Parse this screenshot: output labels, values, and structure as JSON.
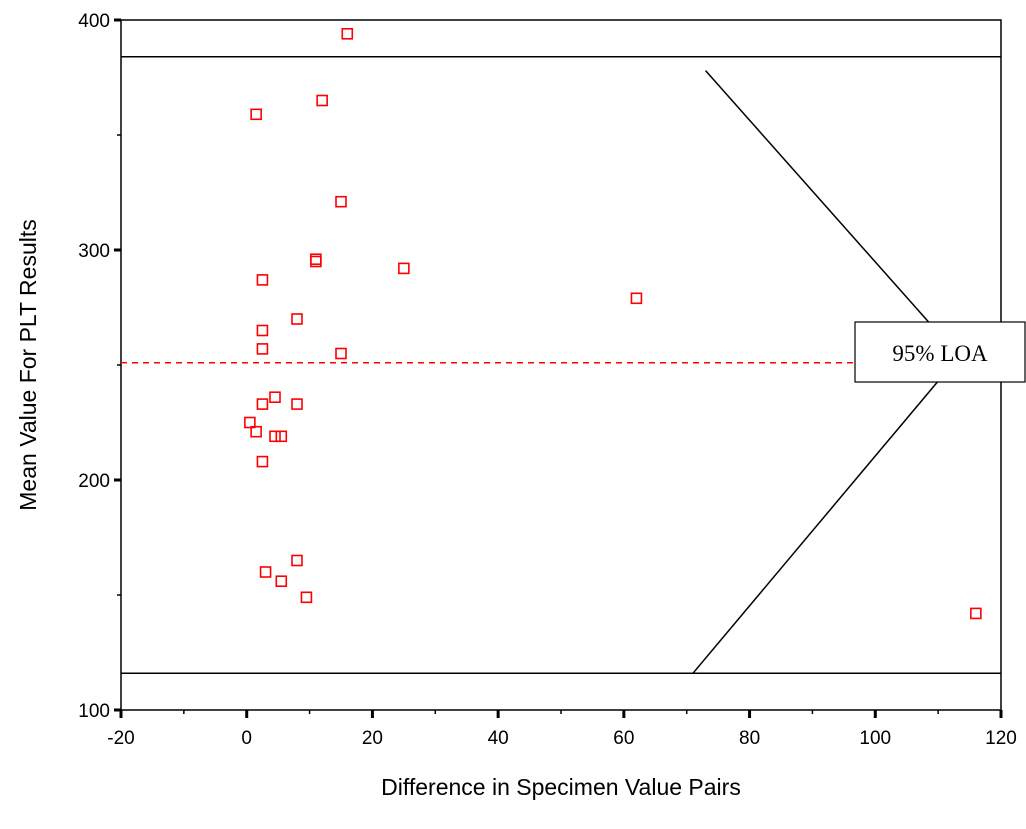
{
  "chart_data": {
    "type": "scatter",
    "xlabel": "Difference in Specimen Value Pairs",
    "ylabel": "Mean Value For PLT Results",
    "xlim": [
      -20,
      120
    ],
    "ylim": [
      100,
      400
    ],
    "x_ticks": [
      "-20",
      "0",
      "20",
      "40",
      "60",
      "80",
      "100",
      "120"
    ],
    "y_ticks": [
      "100",
      "200",
      "300",
      "400"
    ],
    "grid": false,
    "annotation": "95% LOA",
    "mean_line": 251,
    "upper_limit": 384,
    "lower_limit": 116,
    "cone_lines": [
      {
        "x1": 73,
        "y1": 378,
        "x2": 110,
        "y2": 264
      },
      {
        "x1": 71,
        "y1": 116,
        "x2": 110,
        "y2": 243
      }
    ],
    "points": [
      {
        "x": 16,
        "y": 394
      },
      {
        "x": 1.5,
        "y": 359
      },
      {
        "x": 12,
        "y": 365
      },
      {
        "x": 15,
        "y": 321
      },
      {
        "x": 2.5,
        "y": 287
      },
      {
        "x": 11,
        "y": 295
      },
      {
        "x": 11,
        "y": 296
      },
      {
        "x": 25,
        "y": 292
      },
      {
        "x": 62,
        "y": 279
      },
      {
        "x": 8,
        "y": 270
      },
      {
        "x": 2.5,
        "y": 265
      },
      {
        "x": 2.5,
        "y": 257
      },
      {
        "x": 15,
        "y": 255
      },
      {
        "x": 4.5,
        "y": 236
      },
      {
        "x": 2.5,
        "y": 233
      },
      {
        "x": 8,
        "y": 233
      },
      {
        "x": 0.5,
        "y": 225
      },
      {
        "x": 1.5,
        "y": 221
      },
      {
        "x": 4.5,
        "y": 219
      },
      {
        "x": 5.5,
        "y": 219
      },
      {
        "x": 2.5,
        "y": 208
      },
      {
        "x": 8,
        "y": 165
      },
      {
        "x": 3,
        "y": 160
      },
      {
        "x": 5.5,
        "y": 156
      },
      {
        "x": 9.5,
        "y": 149
      },
      {
        "x": 116,
        "y": 142
      }
    ],
    "colors": {
      "points": "#ff0000",
      "mean_line": "#ff0000",
      "lines": "#000000"
    }
  }
}
